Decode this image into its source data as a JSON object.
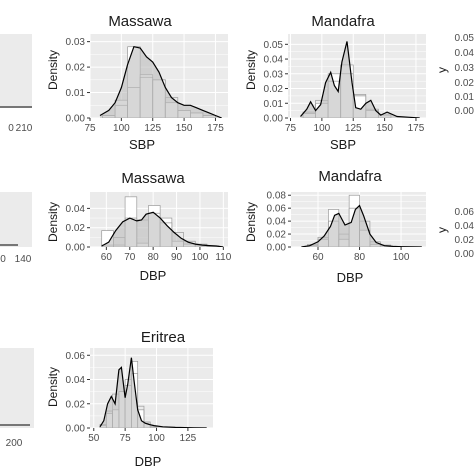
{
  "colors": {
    "panel_background": "#ebebeb",
    "grid_major": "#ffffff",
    "histogram_fill": "#ffffff",
    "histogram_stroke": "#9a9a9a",
    "density_fill": "#bdbdbd",
    "density_line": "#000000",
    "text": "#1a1a1a",
    "tick_text": "#4d4d4d"
  },
  "chart_data": [
    {
      "id": "massawa-sbp",
      "type": "area",
      "title": "Massawa",
      "xlabel": "SBP",
      "ylabel": "Density",
      "xlim": [
        75,
        185
      ],
      "ylim": [
        0,
        0.033
      ],
      "xticks": [
        75,
        100,
        125,
        150,
        175
      ],
      "xtick_labels": [
        "75",
        "100",
        "125",
        "150",
        "175"
      ],
      "yticks": [
        0,
        0.01,
        0.02,
        0.03
      ],
      "ytick_labels": [
        "0.00",
        "0.01",
        "0.02",
        "0.03"
      ],
      "histogram": {
        "bin_edges": [
          85,
          95,
          105,
          115,
          125,
          135,
          145,
          155,
          165,
          175
        ],
        "density_a": [
          0.001,
          0.007,
          0.028,
          0.017,
          0.015,
          0.006,
          0.003,
          0.002,
          0.001
        ],
        "density_b": [
          0.001,
          0.005,
          0.012,
          0.016,
          0.015,
          0.008,
          0.003,
          0.002,
          0.001
        ]
      },
      "density": {
        "x": [
          83,
          90,
          95,
          100,
          105,
          110,
          115,
          120,
          125,
          130,
          135,
          140,
          145,
          150,
          155,
          160,
          165,
          170,
          175,
          180
        ],
        "y": [
          0.001,
          0.003,
          0.006,
          0.012,
          0.021,
          0.028,
          0.0275,
          0.024,
          0.022,
          0.018,
          0.012,
          0.008,
          0.006,
          0.005,
          0.005,
          0.004,
          0.003,
          0.002,
          0.001,
          0
        ]
      }
    },
    {
      "id": "mandafra-sbp",
      "type": "area",
      "title": "Mandafra",
      "xlabel": "SBP",
      "ylabel": "Density",
      "xlim": [
        73,
        183
      ],
      "ylim": [
        0,
        0.057
      ],
      "xticks": [
        75,
        100,
        125,
        150,
        175
      ],
      "xtick_labels": [
        "75",
        "100",
        "125",
        "150",
        "175"
      ],
      "yticks": [
        0,
        0.01,
        0.02,
        0.03,
        0.04,
        0.05
      ],
      "ytick_labels": [
        "0.00",
        "0.01",
        "0.02",
        "0.03",
        "0.04",
        "0.05"
      ],
      "histogram": {
        "bin_edges": [
          85,
          95,
          105,
          115,
          125,
          135,
          145,
          155
        ],
        "density_a": [
          0.003,
          0.01,
          0.03,
          0.036,
          0.015,
          0.005,
          0.002
        ],
        "density_b": [
          0.004,
          0.012,
          0.025,
          0.03,
          0.016,
          0.006,
          0.002
        ]
      },
      "density": {
        "x": [
          83,
          88,
          91,
          95,
          99,
          103,
          107,
          110,
          113,
          116,
          120,
          124,
          127,
          131,
          135,
          139,
          143,
          147,
          152,
          160,
          170,
          178
        ],
        "y": [
          0.001,
          0.006,
          0.011,
          0.005,
          0.009,
          0.024,
          0.031,
          0.022,
          0.018,
          0.038,
          0.052,
          0.024,
          0.007,
          0.006,
          0.01,
          0.012,
          0.005,
          0.002,
          0.004,
          0.001,
          0.0005,
          0
        ]
      }
    },
    {
      "id": "massawa-dbp",
      "type": "area",
      "title": "Massawa",
      "xlabel": "DBP",
      "ylabel": "Density",
      "xlim": [
        53,
        112
      ],
      "ylim": [
        0,
        0.057
      ],
      "xticks": [
        60,
        70,
        80,
        90,
        100,
        110
      ],
      "xtick_labels": [
        "60",
        "70",
        "80",
        "90",
        "100",
        "110"
      ],
      "yticks": [
        0,
        0.02,
        0.04
      ],
      "ytick_labels": [
        "0.00",
        "0.02",
        "0.04"
      ],
      "histogram": {
        "bin_edges": [
          58,
          63,
          68,
          73,
          78,
          83,
          88,
          93,
          98,
          103,
          108
        ],
        "density_a": [
          0.017,
          0.002,
          0.052,
          0.004,
          0.043,
          0.03,
          0.006,
          0.003,
          0.002,
          0.001
        ],
        "density_b": [
          0.002,
          0.01,
          0.03,
          0.028,
          0.035,
          0.025,
          0.015,
          0.006,
          0.003,
          0.001
        ]
      },
      "density": {
        "x": [
          58,
          61,
          64,
          67,
          70,
          73,
          75,
          77,
          80,
          83,
          86,
          89,
          92,
          95,
          98,
          101,
          104,
          107,
          110
        ],
        "y": [
          0.001,
          0.005,
          0.017,
          0.026,
          0.03,
          0.027,
          0.028,
          0.034,
          0.036,
          0.03,
          0.022,
          0.015,
          0.009,
          0.005,
          0.003,
          0.002,
          0.0015,
          0.001,
          0
        ]
      }
    },
    {
      "id": "mandafra-dbp",
      "type": "area",
      "title": "Mandafra",
      "xlabel": "DBP",
      "ylabel": "Density",
      "xlim": [
        47,
        112
      ],
      "ylim": [
        0,
        0.085
      ],
      "xticks": [
        60,
        80,
        100
      ],
      "xtick_labels": [
        "60",
        "80",
        "100"
      ],
      "yticks": [
        0,
        0.02,
        0.04,
        0.06,
        0.08
      ],
      "ytick_labels": [
        "0.00",
        "0.02",
        "0.04",
        "0.06",
        "0.08"
      ],
      "histogram": {
        "bin_edges": [
          55,
          60,
          65,
          70,
          75,
          80,
          85,
          90,
          95,
          100
        ],
        "density_a": [
          0.002,
          0.012,
          0.058,
          0.012,
          0.08,
          0.026,
          0.004,
          0.002,
          0.001
        ],
        "density_b": [
          0.004,
          0.015,
          0.04,
          0.02,
          0.06,
          0.04,
          0.008,
          0.003,
          0.001
        ]
      },
      "density": {
        "x": [
          52,
          56,
          60,
          63,
          66,
          68,
          70,
          73,
          76,
          78,
          80,
          82,
          85,
          88,
          92,
          96,
          100,
          105,
          110
        ],
        "y": [
          0,
          0.002,
          0.008,
          0.017,
          0.032,
          0.049,
          0.052,
          0.034,
          0.038,
          0.058,
          0.064,
          0.048,
          0.02,
          0.007,
          0.002,
          0.001,
          0.0005,
          0.0002,
          0
        ]
      }
    },
    {
      "id": "eritrea-dbp",
      "type": "area",
      "title": "Eritrea",
      "xlabel": "DBP",
      "ylabel": "Density",
      "xlim": [
        47,
        145
      ],
      "ylim": [
        0,
        0.066
      ],
      "xticks": [
        50,
        75,
        100,
        125
      ],
      "xtick_labels": [
        "50",
        "75",
        "100",
        "125"
      ],
      "yticks": [
        0,
        0.02,
        0.04,
        0.06
      ],
      "ytick_labels": [
        "0.00",
        "0.02",
        "0.04",
        "0.06"
      ],
      "histogram": {
        "bin_edges": [
          55,
          60,
          65,
          70,
          75,
          80,
          85,
          90,
          95,
          100
        ],
        "density_a": [
          0.002,
          0.012,
          0.015,
          0.03,
          0.04,
          0.055,
          0.015,
          0.004,
          0.001
        ],
        "density_b": [
          0.003,
          0.014,
          0.028,
          0.03,
          0.035,
          0.045,
          0.018,
          0.005,
          0.001
        ]
      },
      "density": {
        "x": [
          55,
          58,
          61,
          64,
          67,
          70,
          72,
          75,
          77,
          80,
          82,
          85,
          88,
          91,
          94,
          98,
          105,
          115,
          130,
          140
        ],
        "y": [
          0.001,
          0.006,
          0.02,
          0.026,
          0.02,
          0.048,
          0.05,
          0.025,
          0.036,
          0.058,
          0.04,
          0.015,
          0.006,
          0.004,
          0.003,
          0.002,
          0.001,
          0.0005,
          0.0002,
          0
        ]
      }
    },
    {
      "id": "cut-row1",
      "type": "area",
      "xtick_labels": [
        "0",
        "210"
      ],
      "ytick_labels": [
        "0.05",
        "0.04",
        "0.03",
        "0.02",
        "0.01",
        "0.00"
      ],
      "ylabel_fragment": "y"
    },
    {
      "id": "cut-row2",
      "type": "area",
      "xtick_labels": [
        "0",
        "140"
      ],
      "ytick_labels": [
        "0.06",
        "0.04",
        "0.02",
        "0.00"
      ],
      "ylabel_fragment": "y"
    },
    {
      "id": "cut-row3",
      "type": "area",
      "xtick_labels": [
        "200"
      ]
    }
  ]
}
